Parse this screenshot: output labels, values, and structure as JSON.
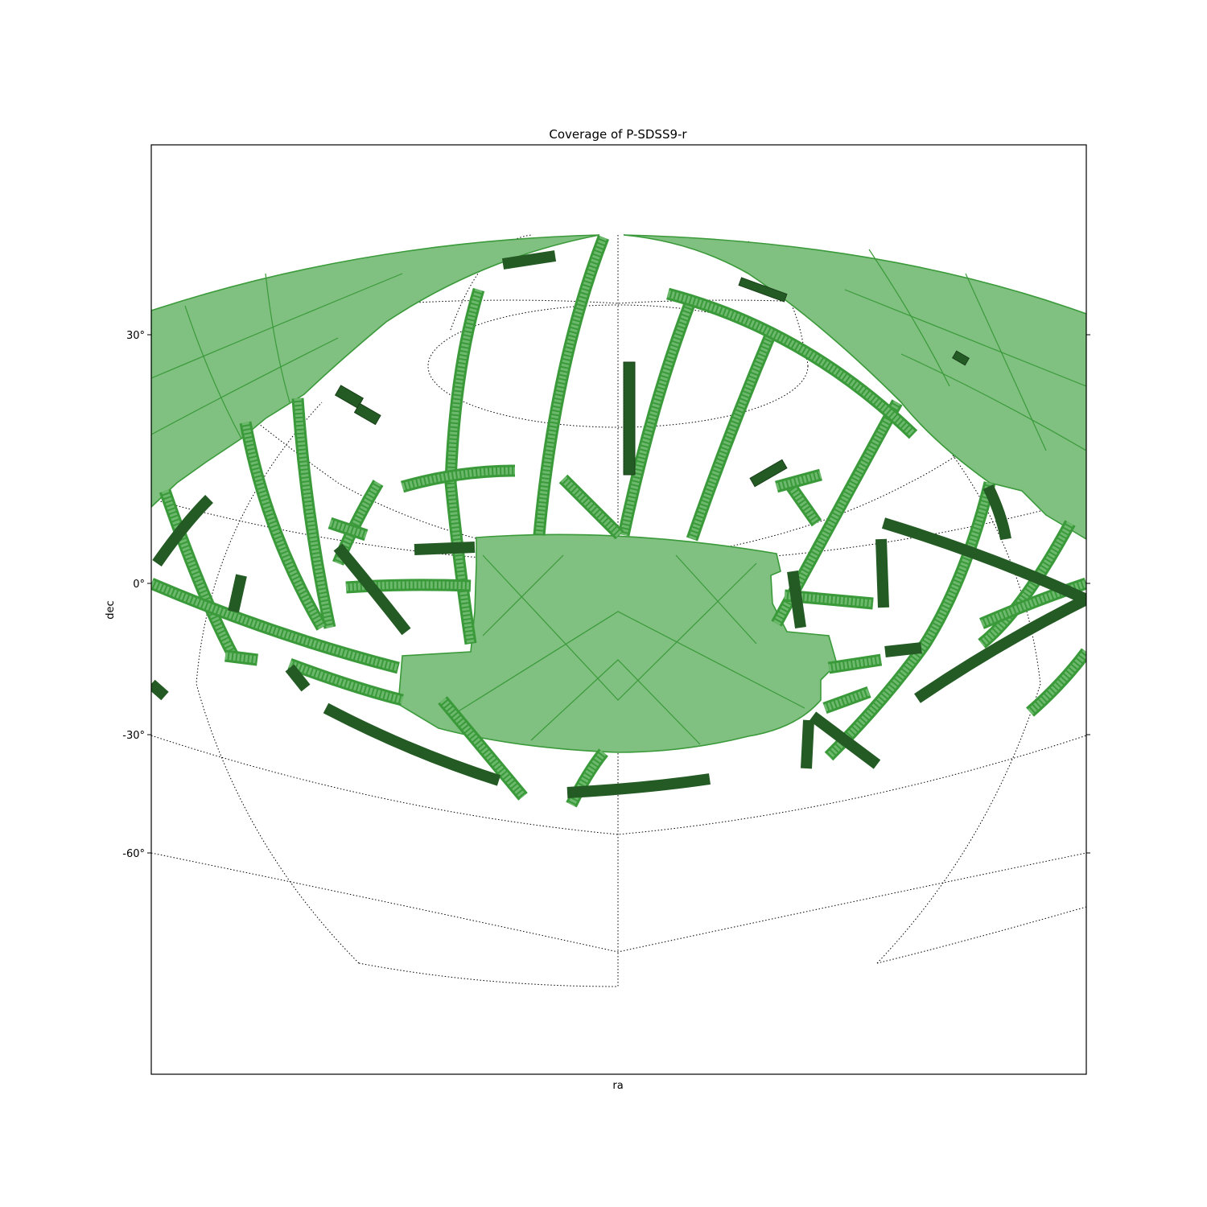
{
  "chart_data": {
    "type": "coverage-map",
    "title": "Coverage of P-SDSS9-r",
    "xlabel": "ra",
    "ylabel": "dec",
    "ytick_labels": [
      "30°",
      "0°",
      "-30°",
      "-60°"
    ],
    "dec_ticks": [
      30,
      0,
      -30,
      -60
    ],
    "grid": true,
    "colors": {
      "coverage_fill": "#80c080",
      "coverage_edge": "#3a9a3a",
      "dark_stripe": "#245a24",
      "grid": "#000000"
    }
  }
}
